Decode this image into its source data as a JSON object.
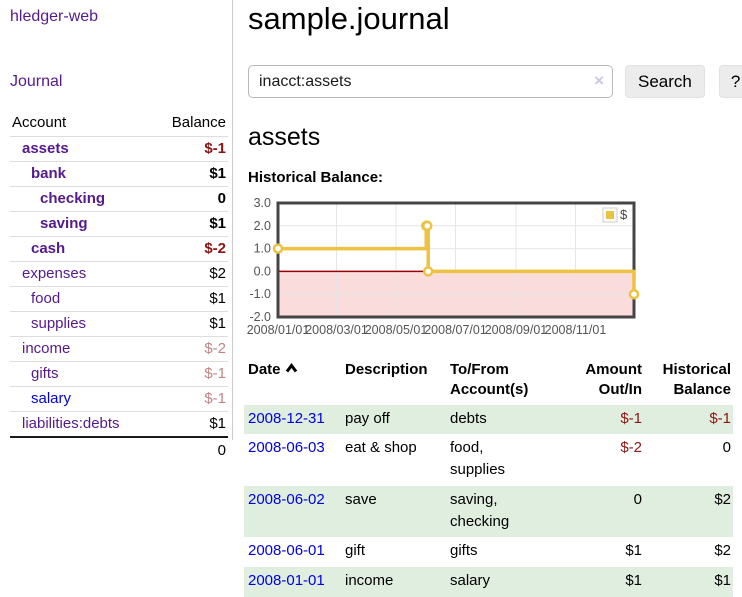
{
  "app": {
    "brand": "hledger-web",
    "nav_journal": "Journal"
  },
  "colors": {
    "link_purple": "#551a8b",
    "link_blue": "#0000e0",
    "negative_strong": "#8b1414",
    "negative_dim": "#bf8585",
    "row_stripe_green": "#dfeedf",
    "button_bg": "#ececec"
  },
  "sidebar": {
    "headers": {
      "account": "Account",
      "balance": "Balance"
    },
    "accounts": [
      {
        "name": "assets",
        "depth": 1,
        "bold": true,
        "blue": false,
        "balance": "$-1",
        "balance_class": "neg-strong"
      },
      {
        "name": "bank",
        "depth": 2,
        "bold": true,
        "blue": false,
        "balance": "$1",
        "balance_class": "pos"
      },
      {
        "name": "checking",
        "depth": 3,
        "bold": true,
        "blue": false,
        "balance": "0",
        "balance_class": "pos"
      },
      {
        "name": "saving",
        "depth": 3,
        "bold": true,
        "blue": false,
        "balance": "$1",
        "balance_class": "pos"
      },
      {
        "name": "cash",
        "depth": 2,
        "bold": true,
        "blue": false,
        "balance": "$-2",
        "balance_class": "neg-strong"
      },
      {
        "name": "expenses",
        "depth": 1,
        "bold": false,
        "blue": false,
        "balance": "$2",
        "balance_class": "pos"
      },
      {
        "name": "food",
        "depth": 2,
        "bold": false,
        "blue": false,
        "balance": "$1",
        "balance_class": "pos"
      },
      {
        "name": "supplies",
        "depth": 2,
        "bold": false,
        "blue": false,
        "balance": "$1",
        "balance_class": "pos"
      },
      {
        "name": "income",
        "depth": 1,
        "bold": false,
        "blue": false,
        "balance": "$-2",
        "balance_class": "neg-dim"
      },
      {
        "name": "gifts",
        "depth": 2,
        "bold": false,
        "blue": false,
        "balance": "$-1",
        "balance_class": "neg-dim"
      },
      {
        "name": "salary",
        "depth": 2,
        "bold": false,
        "blue": true,
        "balance": "$-1",
        "balance_class": "neg-dim"
      },
      {
        "name": "liabilities:debts",
        "depth": 1,
        "bold": false,
        "blue": false,
        "balance": "$1",
        "balance_class": "pos"
      }
    ],
    "total": "0"
  },
  "header": {
    "title": "sample.journal"
  },
  "search": {
    "value": "inacct:assets",
    "clear_icon": "×",
    "button_label": "Search",
    "help_label": "?"
  },
  "account_page": {
    "title": "assets",
    "chart_label": "Historical Balance:"
  },
  "chart_data": {
    "type": "line",
    "step": true,
    "series": [
      {
        "name": "$",
        "color": "#edc240",
        "points": [
          [
            "2008-01-01",
            1
          ],
          [
            "2008-06-01",
            2
          ],
          [
            "2008-06-02",
            2
          ],
          [
            "2008-06-03",
            0
          ],
          [
            "2008-12-31",
            -1
          ]
        ]
      }
    ],
    "x_range": [
      "2008-01-01",
      "2008-12-31"
    ],
    "ylim": [
      -2,
      3
    ],
    "y_ticks": [
      3,
      2,
      1,
      0,
      -1,
      -2
    ],
    "x_ticks": [
      "2008/01/01",
      "2008/03/01",
      "2008/05/01",
      "2008/07/01",
      "2008/09/01",
      "2008/11/01"
    ],
    "grid": true,
    "gridline_color": "#e6e6e6",
    "border_color": "#444444",
    "legend_position": "top-right",
    "zero_line_color": "#990000",
    "negative_region_color": "#fbdcdc",
    "marker_fill": "#ffffff"
  },
  "register": {
    "headers": [
      {
        "line1": "Date",
        "sorted": "asc"
      },
      {
        "line1": "Description"
      },
      {
        "line1": "To/From",
        "line2": "Account(s)"
      },
      {
        "line1": "Amount",
        "line2": "Out/In"
      },
      {
        "line1": "Historical",
        "line2": "Balance"
      }
    ],
    "rows": [
      {
        "date": "2008-12-31",
        "description": "pay off",
        "accounts": "debts",
        "amount": "$-1",
        "amount_neg": true,
        "balance": "$-1",
        "balance_neg": true
      },
      {
        "date": "2008-06-03",
        "description": "eat & shop",
        "accounts": "food, supplies",
        "amount": "$-2",
        "amount_neg": true,
        "balance": "0",
        "balance_neg": false
      },
      {
        "date": "2008-06-02",
        "description": "save",
        "accounts": "saving, checking",
        "amount": "0",
        "amount_neg": false,
        "balance": "$2",
        "balance_neg": false
      },
      {
        "date": "2008-06-01",
        "description": "gift",
        "accounts": "gifts",
        "amount": "$1",
        "amount_neg": false,
        "balance": "$2",
        "balance_neg": false
      },
      {
        "date": "2008-01-01",
        "description": "income",
        "accounts": "salary",
        "amount": "$1",
        "amount_neg": false,
        "balance": "$1",
        "balance_neg": false
      }
    ]
  }
}
